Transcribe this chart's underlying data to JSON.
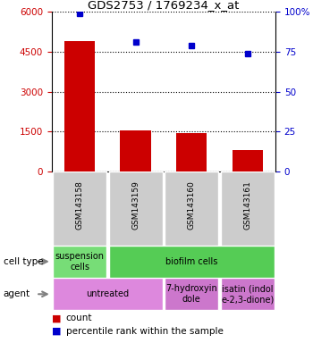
{
  "title": "GDS2753 / 1769234_x_at",
  "samples": [
    "GSM143158",
    "GSM143159",
    "GSM143160",
    "GSM143161"
  ],
  "counts": [
    4900,
    1540,
    1430,
    800
  ],
  "percentile_ranks": [
    99,
    81,
    79,
    74
  ],
  "ylim_left": [
    0,
    6000
  ],
  "ylim_right": [
    0,
    100
  ],
  "yticks_left": [
    0,
    1500,
    3000,
    4500,
    6000
  ],
  "yticks_right": [
    0,
    25,
    50,
    75,
    100
  ],
  "ytick_labels_left": [
    "0",
    "1500",
    "3000",
    "4500",
    "6000"
  ],
  "ytick_labels_right": [
    "0",
    "25",
    "50",
    "75",
    "100%"
  ],
  "bar_color": "#cc0000",
  "dot_color": "#0000cc",
  "cell_type_row": [
    {
      "label": "suspension\ncells",
      "color": "#77dd77",
      "span": 1
    },
    {
      "label": "biofilm cells",
      "color": "#55cc55",
      "span": 3
    }
  ],
  "agent_row": [
    {
      "label": "untreated",
      "color": "#dd88dd",
      "span": 2
    },
    {
      "label": "7-hydroxyin\ndole",
      "color": "#cc77cc",
      "span": 1
    },
    {
      "label": "isatin (indol\ne-2,3-dione)",
      "color": "#cc77cc",
      "span": 1
    }
  ],
  "tick_color_left": "#cc0000",
  "tick_color_right": "#0000cc",
  "sample_box_color": "#cccccc",
  "background_color": "#ffffff",
  "legend_items": [
    {
      "color": "#cc0000",
      "label": "count"
    },
    {
      "color": "#0000cc",
      "label": "percentile rank within the sample"
    }
  ]
}
